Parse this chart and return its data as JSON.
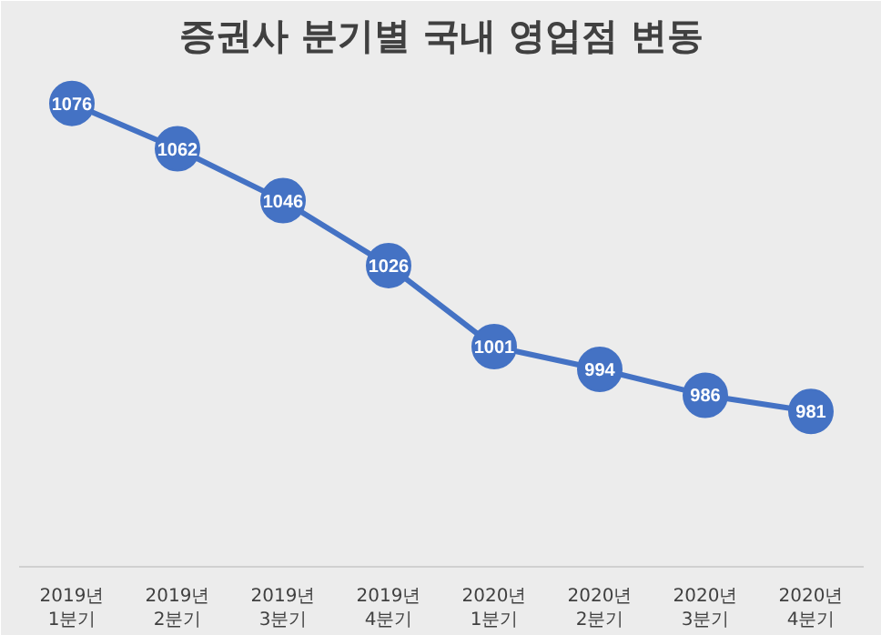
{
  "chart_data": {
    "type": "line",
    "title": "증권사 분기별 국내 영업점 변동",
    "categories": [
      "2019년\n1분기",
      "2019년\n2분기",
      "2019년\n3분기",
      "2019년\n4분기",
      "2020년\n1분기",
      "2020년\n2분기",
      "2020년\n3분기",
      "2020년\n4분기"
    ],
    "series": [
      {
        "color": "#4472c4",
        "values": [
          1076,
          1062,
          1046,
          1026,
          1001,
          994,
          986,
          981
        ]
      }
    ],
    "data_labels": true,
    "marker": "circle",
    "line_style": "solid",
    "grid": false
  }
}
